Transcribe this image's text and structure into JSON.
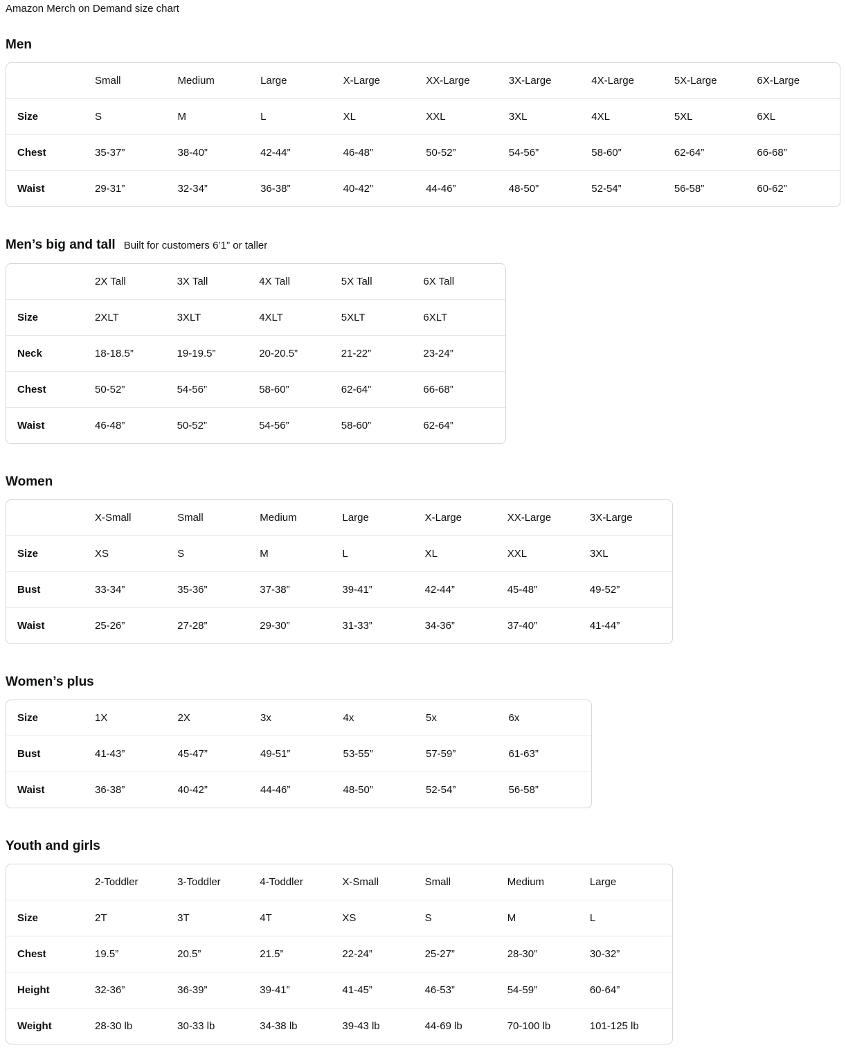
{
  "page": {
    "title": "Amazon Merch on Demand size chart"
  },
  "sections": [
    {
      "id": "men",
      "heading": "Men",
      "subtitle": "",
      "table": {
        "columns": [
          "Small",
          "Medium",
          "Large",
          "X-Large",
          "XX-Large",
          "3X-Large",
          "4X-Large",
          "5X-Large",
          "6X-Large"
        ],
        "rows": [
          {
            "label": "Size",
            "values": [
              "S",
              "M",
              "L",
              "XL",
              "XXL",
              "3XL",
              "4XL",
              "5XL",
              "6XL"
            ]
          },
          {
            "label": "Chest",
            "values": [
              "35-37”",
              "38-40”",
              "42-44”",
              "46-48”",
              "50-52”",
              "54-56”",
              "58-60”",
              "62-64”",
              "66-68”"
            ]
          },
          {
            "label": "Waist",
            "values": [
              "29-31”",
              "32-34”",
              "36-38”",
              "40-42”",
              "44-46”",
              "48-50”",
              "52-54”",
              "56-58”",
              "60-62”"
            ]
          }
        ]
      }
    },
    {
      "id": "mens-big-and-tall",
      "heading": "Men’s big and tall",
      "subtitle": "Built for customers 6’1” or taller",
      "table": {
        "columns": [
          "2X Tall",
          "3X Tall",
          "4X Tall",
          "5X Tall",
          "6X Tall"
        ],
        "rows": [
          {
            "label": "Size",
            "values": [
              "2XLT",
              "3XLT",
              "4XLT",
              "5XLT",
              "6XLT"
            ]
          },
          {
            "label": "Neck",
            "values": [
              "18-18.5”",
              "19-19.5”",
              "20-20.5”",
              "21-22”",
              "23-24”"
            ]
          },
          {
            "label": "Chest",
            "values": [
              "50-52”",
              "54-56”",
              "58-60”",
              "62-64”",
              "66-68”"
            ]
          },
          {
            "label": "Waist",
            "values": [
              "46-48”",
              "50-52”",
              "54-56”",
              "58-60”",
              "62-64”"
            ]
          }
        ]
      }
    },
    {
      "id": "women",
      "heading": "Women",
      "subtitle": "",
      "table": {
        "columns": [
          "X-Small",
          "Small",
          "Medium",
          "Large",
          "X-Large",
          "XX-Large",
          "3X-Large"
        ],
        "rows": [
          {
            "label": "Size",
            "values": [
              "XS",
              "S",
              "M",
              "L",
              "XL",
              "XXL",
              "3XL"
            ]
          },
          {
            "label": "Bust",
            "values": [
              "33-34”",
              "35-36”",
              "37-38”",
              "39-41”",
              "42-44”",
              "45-48”",
              "49-52”"
            ]
          },
          {
            "label": "Waist",
            "values": [
              "25-26”",
              "27-28”",
              "29-30”",
              "31-33”",
              "34-36”",
              "37-40”",
              "41-44”"
            ]
          }
        ]
      }
    },
    {
      "id": "womens-plus",
      "heading": "Women’s plus",
      "subtitle": "",
      "table": {
        "columns": null,
        "rows": [
          {
            "label": "Size",
            "values": [
              "1X",
              "2X",
              "3x",
              "4x",
              "5x",
              "6x"
            ]
          },
          {
            "label": "Bust",
            "values": [
              "41-43”",
              "45-47”",
              "49-51”",
              "53-55”",
              "57-59”",
              "61-63”"
            ]
          },
          {
            "label": "Waist",
            "values": [
              "36-38”",
              "40-42”",
              "44-46”",
              "48-50”",
              "52-54”",
              "56-58”"
            ]
          }
        ]
      }
    },
    {
      "id": "youth-and-girls",
      "heading": "Youth and girls",
      "subtitle": "",
      "table": {
        "columns": [
          "2-Toddler",
          "3-Toddler",
          "4-Toddler",
          "X-Small",
          "Small",
          "Medium",
          "Large"
        ],
        "rows": [
          {
            "label": "Size",
            "values": [
              "2T",
              "3T",
              "4T",
              "XS",
              "S",
              "M",
              "L"
            ]
          },
          {
            "label": "Chest",
            "values": [
              "19.5”",
              "20.5”",
              "21.5”",
              "22-24”",
              "25-27”",
              "28-30”",
              "30-32”"
            ]
          },
          {
            "label": "Height",
            "values": [
              "32-36”",
              "36-39”",
              "39-41”",
              "41-45”",
              "46-53”",
              "54-59”",
              "60-64”"
            ]
          },
          {
            "label": "Weight",
            "values": [
              "28-30 lb",
              "30-33 lb",
              "34-38 lb",
              "39-43 lb",
              "44-69 lb",
              "70-100 lb",
              "101-125 lb"
            ]
          }
        ]
      }
    }
  ]
}
